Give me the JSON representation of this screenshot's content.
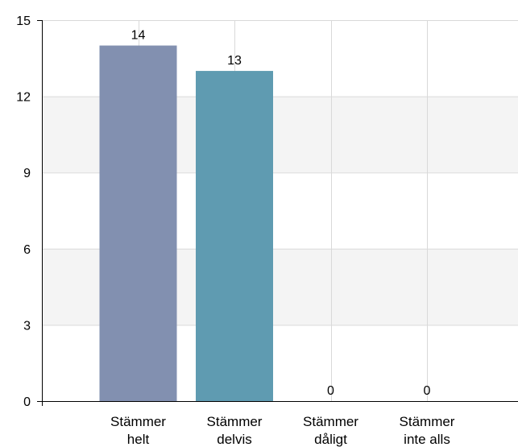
{
  "chart_data": {
    "type": "bar",
    "categories": [
      [
        "Stämmer",
        "helt"
      ],
      [
        "Stämmer",
        "delvis"
      ],
      [
        "Stämmer",
        "dåligt"
      ],
      [
        "Stämmer",
        "inte alls"
      ]
    ],
    "values": [
      14,
      13,
      0,
      0
    ],
    "data_labels": [
      "14",
      "13",
      "0",
      "0"
    ],
    "bar_colors": [
      "#8290b0",
      "#5f9bb1",
      "#8290b0",
      "#5f9bb1"
    ],
    "ylim": [
      0,
      15
    ],
    "yticks": [
      0,
      3,
      6,
      9,
      12,
      15
    ],
    "title": "",
    "xlabel": "",
    "ylabel": "",
    "grid": true,
    "band_color": "#f4f4f4",
    "grid_color": "#d9d9d9"
  }
}
